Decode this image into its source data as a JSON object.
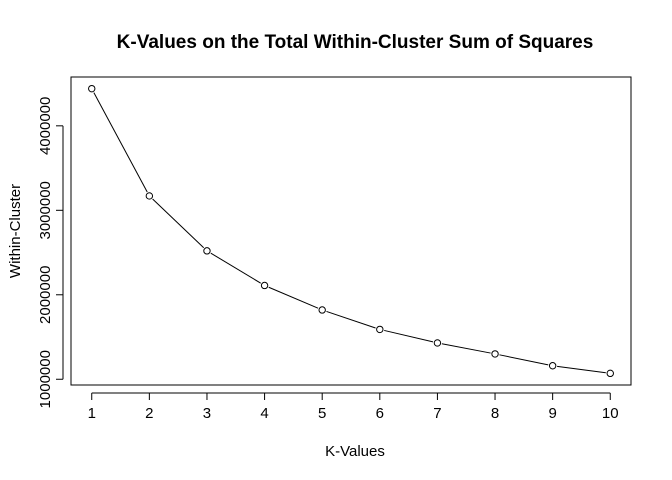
{
  "chart_data": {
    "type": "line",
    "title": "K-Values on the Total Within-Cluster Sum of Squares",
    "xlabel": "K-Values",
    "ylabel": "Within-Cluster",
    "x": [
      1,
      2,
      3,
      4,
      5,
      6,
      7,
      8,
      9,
      10
    ],
    "values": [
      4440000,
      3170000,
      2520000,
      2110000,
      1820000,
      1590000,
      1430000,
      1300000,
      1160000,
      1070000
    ],
    "xticks": [
      "1",
      "2",
      "3",
      "4",
      "5",
      "6",
      "7",
      "8",
      "9",
      "10"
    ],
    "yticks": [
      1000000,
      2000000,
      3000000,
      4000000
    ],
    "ytick_labels": [
      "1000000",
      "2000000",
      "3000000",
      "4000000"
    ],
    "xlim": [
      0.64,
      10.36
    ],
    "ylim": [
      932000,
      4578000
    ],
    "grid": false,
    "markers": "open-circle",
    "line_color": "#000000"
  }
}
